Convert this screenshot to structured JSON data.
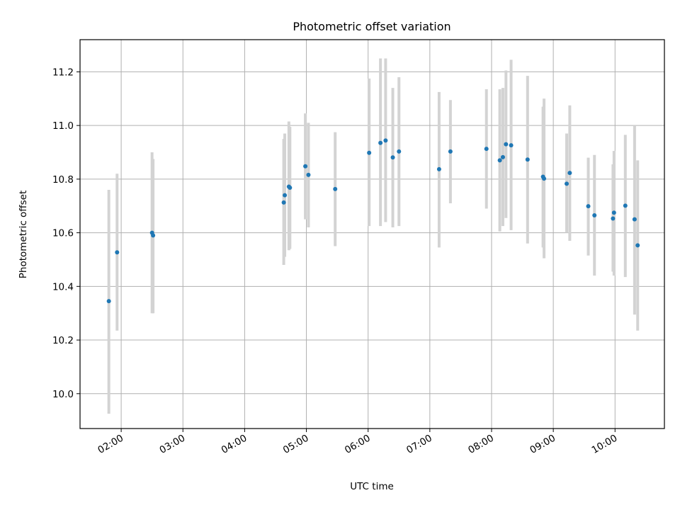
{
  "chart_data": {
    "type": "scatter",
    "title": "Photometric offset variation",
    "xlabel": "UTC time",
    "ylabel": "Photometric offset",
    "x_ticks": [
      "02:00",
      "03:00",
      "04:00",
      "05:00",
      "06:00",
      "07:00",
      "08:00",
      "09:00",
      "10:00"
    ],
    "y_ticks": [
      10.0,
      10.2,
      10.4,
      10.6,
      10.8,
      11.0,
      11.2
    ],
    "xlim": [
      "01:20",
      "10:48"
    ],
    "ylim": [
      9.87,
      11.32
    ],
    "grid": true,
    "colors": {
      "points": "#1f77b4",
      "errorbars": "#d3d3d3",
      "grid": "#b0b0b0"
    },
    "points": [
      {
        "time": "01:48",
        "y": 10.345,
        "lo": 9.925,
        "hi": 10.76
      },
      {
        "time": "01:56",
        "y": 10.527,
        "lo": 10.235,
        "hi": 10.82
      },
      {
        "time": "02:30",
        "y": 10.6,
        "lo": 10.3,
        "hi": 10.9
      },
      {
        "time": "02:31",
        "y": 10.59,
        "lo": 10.3,
        "hi": 10.875
      },
      {
        "time": "04:38",
        "y": 10.713,
        "lo": 10.48,
        "hi": 10.95
      },
      {
        "time": "04:39",
        "y": 10.74,
        "lo": 10.51,
        "hi": 10.97
      },
      {
        "time": "04:43",
        "y": 10.772,
        "lo": 10.535,
        "hi": 11.015
      },
      {
        "time": "04:44",
        "y": 10.768,
        "lo": 10.54,
        "hi": 10.995
      },
      {
        "time": "04:59",
        "y": 10.848,
        "lo": 10.65,
        "hi": 11.045
      },
      {
        "time": "05:02",
        "y": 10.816,
        "lo": 10.62,
        "hi": 11.01
      },
      {
        "time": "05:28",
        "y": 10.763,
        "lo": 10.55,
        "hi": 10.975
      },
      {
        "time": "06:01",
        "y": 10.898,
        "lo": 10.625,
        "hi": 11.175
      },
      {
        "time": "06:12",
        "y": 10.935,
        "lo": 10.625,
        "hi": 11.25
      },
      {
        "time": "06:17",
        "y": 10.944,
        "lo": 10.64,
        "hi": 11.25
      },
      {
        "time": "06:24",
        "y": 10.881,
        "lo": 10.62,
        "hi": 11.14
      },
      {
        "time": "06:30",
        "y": 10.903,
        "lo": 10.625,
        "hi": 11.18
      },
      {
        "time": "07:09",
        "y": 10.837,
        "lo": 10.545,
        "hi": 11.125
      },
      {
        "time": "07:20",
        "y": 10.903,
        "lo": 10.71,
        "hi": 11.095
      },
      {
        "time": "07:55",
        "y": 10.913,
        "lo": 10.69,
        "hi": 11.135
      },
      {
        "time": "08:08",
        "y": 10.87,
        "lo": 10.605,
        "hi": 11.135
      },
      {
        "time": "08:11",
        "y": 10.882,
        "lo": 10.625,
        "hi": 11.14
      },
      {
        "time": "08:14",
        "y": 10.93,
        "lo": 10.655,
        "hi": 11.205
      },
      {
        "time": "08:19",
        "y": 10.926,
        "lo": 10.61,
        "hi": 11.245
      },
      {
        "time": "08:35",
        "y": 10.873,
        "lo": 10.56,
        "hi": 11.185
      },
      {
        "time": "08:50",
        "y": 10.809,
        "lo": 10.545,
        "hi": 11.07
      },
      {
        "time": "08:51",
        "y": 10.802,
        "lo": 10.505,
        "hi": 11.1
      },
      {
        "time": "09:13",
        "y": 10.783,
        "lo": 10.6,
        "hi": 10.97
      },
      {
        "time": "09:16",
        "y": 10.823,
        "lo": 10.57,
        "hi": 11.075
      },
      {
        "time": "09:34",
        "y": 10.699,
        "lo": 10.515,
        "hi": 10.88
      },
      {
        "time": "09:40",
        "y": 10.665,
        "lo": 10.44,
        "hi": 10.89
      },
      {
        "time": "09:58",
        "y": 10.653,
        "lo": 10.455,
        "hi": 10.855
      },
      {
        "time": "09:59",
        "y": 10.675,
        "lo": 10.44,
        "hi": 10.905
      },
      {
        "time": "10:10",
        "y": 10.701,
        "lo": 10.435,
        "hi": 10.965
      },
      {
        "time": "10:19",
        "y": 10.65,
        "lo": 10.295,
        "hi": 11.0
      },
      {
        "time": "10:22",
        "y": 10.553,
        "lo": 10.235,
        "hi": 10.87
      }
    ]
  }
}
